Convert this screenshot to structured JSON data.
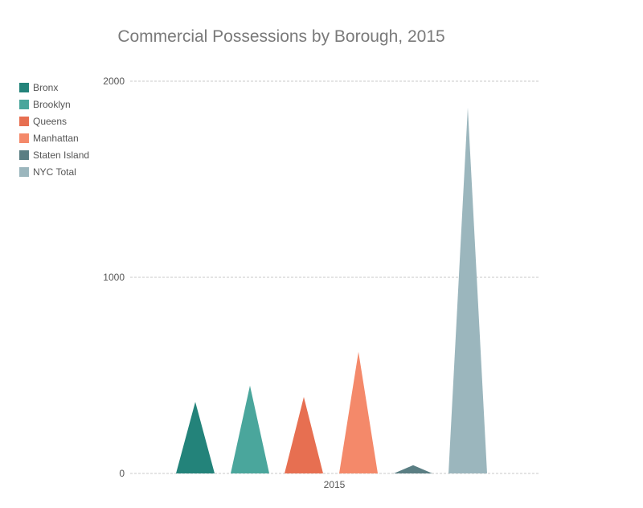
{
  "chart_data": {
    "type": "bar",
    "title": "Commercial Possessions by Borough, 2015",
    "categories": [
      "2015"
    ],
    "series": [
      {
        "name": "Bronx",
        "values": [
          365
        ],
        "color": "#23837a"
      },
      {
        "name": "Brooklyn",
        "values": [
          448
        ],
        "color": "#4aa69c"
      },
      {
        "name": "Queens",
        "values": [
          390
        ],
        "color": "#e76f51"
      },
      {
        "name": "Manhattan",
        "values": [
          620
        ],
        "color": "#f4896a"
      },
      {
        "name": "Staten Island",
        "values": [
          42
        ],
        "color": "#5a7e83"
      },
      {
        "name": "NYC Total",
        "values": [
          1865
        ],
        "color": "#9bb6bd"
      }
    ],
    "y_ticks": [
      0,
      1000,
      2000
    ],
    "ylim": [
      0,
      2000
    ],
    "grid": true,
    "legend_position": "left"
  }
}
